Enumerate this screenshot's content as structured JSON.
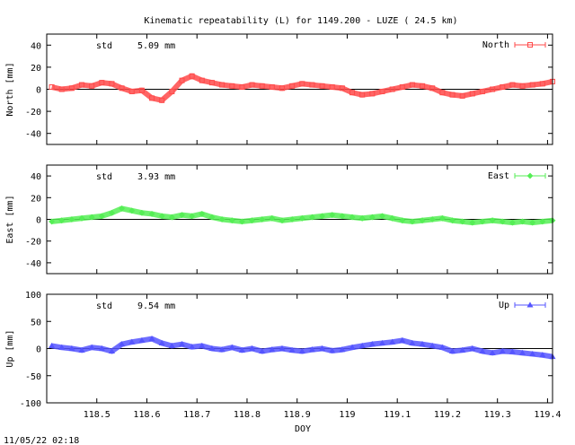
{
  "title": "Kinematic repeatability (L) for 1149.200 - LUZE  ( 24.5 km)",
  "footer": "11/05/22 02:18",
  "chart_data": [
    {
      "type": "line",
      "title": "Kinematic repeatability (L) for 1149.200 - LUZE  ( 24.5 km)",
      "ylabel": "North [mm]",
      "xlabel": "",
      "series": [
        {
          "name": "North",
          "color": "#ff4a4a",
          "marker": "square",
          "x": [
            118.41,
            118.43,
            118.45,
            118.47,
            118.49,
            118.51,
            118.53,
            118.55,
            118.57,
            118.59,
            118.61,
            118.63,
            118.65,
            118.67,
            118.69,
            118.71,
            118.73,
            118.75,
            118.77,
            118.79,
            118.81,
            118.83,
            118.85,
            118.87,
            118.89,
            118.91,
            118.93,
            118.95,
            118.97,
            118.99,
            119.01,
            119.03,
            119.05,
            119.07,
            119.09,
            119.11,
            119.13,
            119.15,
            119.17,
            119.19,
            119.21,
            119.23,
            119.25,
            119.27,
            119.29,
            119.31,
            119.33,
            119.35,
            119.37,
            119.39,
            119.41
          ],
          "values": [
            2,
            0,
            1,
            4,
            3,
            6,
            5,
            1,
            -2,
            -1,
            -8,
            -10,
            -2,
            8,
            12,
            8,
            6,
            4,
            3,
            2,
            4,
            3,
            2,
            1,
            3,
            5,
            4,
            3,
            2,
            1,
            -3,
            -5,
            -4,
            -2,
            0,
            2,
            4,
            3,
            1,
            -3,
            -5,
            -6,
            -4,
            -2,
            0,
            2,
            4,
            3,
            4,
            5,
            7
          ]
        }
      ],
      "ylim": [
        -50,
        50
      ],
      "yticks": [
        -40,
        -20,
        0,
        20,
        40
      ],
      "annotation": {
        "label": "std",
        "value": "5.09 mm"
      },
      "legend": "top-right"
    },
    {
      "type": "line",
      "ylabel": "East [mm]",
      "xlabel": "",
      "series": [
        {
          "name": "East",
          "color": "#55ee55",
          "marker": "diamond",
          "x": [
            118.41,
            118.43,
            118.45,
            118.47,
            118.49,
            118.51,
            118.53,
            118.55,
            118.57,
            118.59,
            118.61,
            118.63,
            118.65,
            118.67,
            118.69,
            118.71,
            118.73,
            118.75,
            118.77,
            118.79,
            118.81,
            118.83,
            118.85,
            118.87,
            118.89,
            118.91,
            118.93,
            118.95,
            118.97,
            118.99,
            119.01,
            119.03,
            119.05,
            119.07,
            119.09,
            119.11,
            119.13,
            119.15,
            119.17,
            119.19,
            119.21,
            119.23,
            119.25,
            119.27,
            119.29,
            119.31,
            119.33,
            119.35,
            119.37,
            119.39,
            119.41
          ],
          "values": [
            -2,
            -1,
            0,
            1,
            2,
            3,
            6,
            10,
            8,
            6,
            5,
            3,
            2,
            4,
            3,
            5,
            2,
            0,
            -1,
            -2,
            -1,
            0,
            1,
            -1,
            0,
            1,
            2,
            3,
            4,
            3,
            2,
            1,
            2,
            3,
            1,
            -1,
            -2,
            -1,
            0,
            1,
            -1,
            -2,
            -3,
            -2,
            -1,
            -2,
            -3,
            -2,
            -3,
            -2,
            -1
          ]
        }
      ],
      "ylim": [
        -50,
        50
      ],
      "yticks": [
        -40,
        -20,
        0,
        20,
        40
      ],
      "annotation": {
        "label": "std",
        "value": "3.93 mm"
      },
      "legend": "top-right"
    },
    {
      "type": "line",
      "ylabel": "Up [mm]",
      "xlabel": "DOY",
      "series": [
        {
          "name": "Up",
          "color": "#5555ff",
          "marker": "triangle",
          "x": [
            118.41,
            118.43,
            118.45,
            118.47,
            118.49,
            118.51,
            118.53,
            118.55,
            118.57,
            118.59,
            118.61,
            118.63,
            118.65,
            118.67,
            118.69,
            118.71,
            118.73,
            118.75,
            118.77,
            118.79,
            118.81,
            118.83,
            118.85,
            118.87,
            118.89,
            118.91,
            118.93,
            118.95,
            118.97,
            118.99,
            119.01,
            119.03,
            119.05,
            119.07,
            119.09,
            119.11,
            119.13,
            119.15,
            119.17,
            119.19,
            119.21,
            119.23,
            119.25,
            119.27,
            119.29,
            119.31,
            119.33,
            119.35,
            119.37,
            119.39,
            119.41
          ],
          "values": [
            5,
            2,
            0,
            -3,
            2,
            0,
            -5,
            8,
            12,
            15,
            18,
            10,
            5,
            8,
            3,
            5,
            0,
            -2,
            2,
            -3,
            0,
            -5,
            -2,
            0,
            -3,
            -5,
            -2,
            0,
            -4,
            -2,
            2,
            5,
            8,
            10,
            12,
            15,
            10,
            8,
            5,
            2,
            -5,
            -3,
            0,
            -5,
            -8,
            -5,
            -6,
            -8,
            -10,
            -12,
            -15
          ]
        }
      ],
      "ylim": [
        -100,
        100
      ],
      "yticks": [
        -100,
        -50,
        0,
        50,
        100
      ],
      "xticks": [
        118.5,
        118.6,
        118.7,
        118.8,
        118.9,
        119,
        119.1,
        119.2,
        119.3,
        119.4
      ],
      "xlim": [
        118.4,
        119.41
      ],
      "annotation": {
        "label": "std",
        "value": "9.54 mm"
      },
      "legend": "top-right"
    }
  ]
}
